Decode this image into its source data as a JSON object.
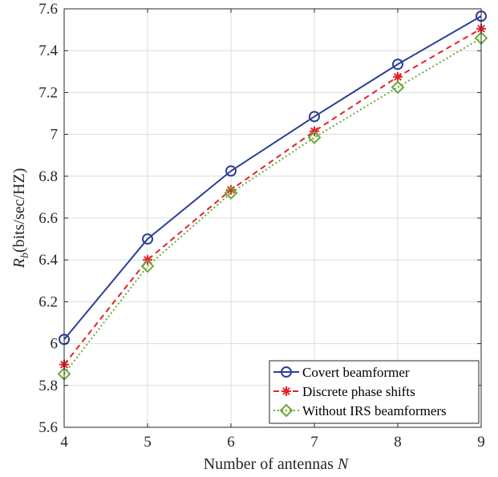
{
  "chart_data": {
    "type": "line",
    "title": "",
    "xlabel": "Number of antennas",
    "xlabel_var": "N",
    "ylabel_main": "R",
    "ylabel_sub": "b",
    "ylabel_unit": "(bits/sec/HZ)",
    "x": [
      4,
      5,
      6,
      7,
      8,
      9
    ],
    "xlim": [
      4,
      9
    ],
    "ylim": [
      5.6,
      7.6
    ],
    "xticks": [
      "4",
      "5",
      "6",
      "7",
      "8",
      "9"
    ],
    "yticks": [
      "5.6",
      "5.8",
      "6",
      "6.2",
      "6.4",
      "6.6",
      "6.8",
      "7",
      "7.2",
      "7.4",
      "7.6"
    ],
    "grid": true,
    "legend_position": "bottom-right",
    "series": [
      {
        "name": "Covert beamformer",
        "values": [
          6.02,
          6.5,
          6.825,
          7.085,
          7.335,
          7.565
        ],
        "color": "#2c3f95",
        "dash": "solid",
        "marker": "circle"
      },
      {
        "name": "Discrete phase shifts",
        "values": [
          5.9,
          6.4,
          6.735,
          7.015,
          7.275,
          7.505
        ],
        "color": "#e8202a",
        "dash": "dashed",
        "marker": "asterisk"
      },
      {
        "name": "Without IRS beamformers",
        "values": [
          5.855,
          6.37,
          6.72,
          6.985,
          7.225,
          7.46
        ],
        "color": "#6aaa3a",
        "dash": "dotted",
        "marker": "diamond"
      }
    ]
  }
}
